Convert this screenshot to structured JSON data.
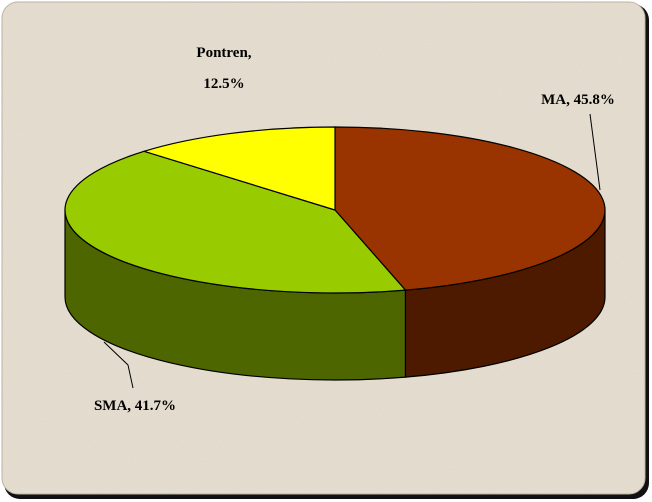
{
  "chart_data": {
    "type": "pie3d",
    "values": [
      45.8,
      41.7,
      12.5
    ],
    "value_labels": [
      "MA, 45.8%",
      "SMA, 41.7%",
      "Pontren, 12.5%"
    ],
    "colors": [
      "#993300",
      "#99cc00",
      "#ffff00"
    ],
    "side_colors": [
      "#4d1a00",
      "#4d6600",
      "#808000"
    ]
  }
}
